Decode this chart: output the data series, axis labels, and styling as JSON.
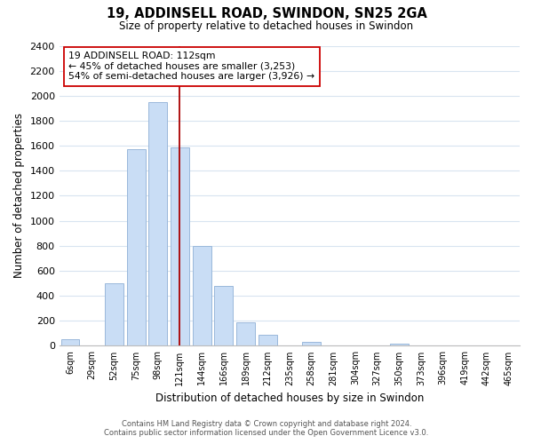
{
  "title": "19, ADDINSELL ROAD, SWINDON, SN25 2GA",
  "subtitle": "Size of property relative to detached houses in Swindon",
  "xlabel": "Distribution of detached houses by size in Swindon",
  "ylabel": "Number of detached properties",
  "bar_labels": [
    "6sqm",
    "29sqm",
    "52sqm",
    "75sqm",
    "98sqm",
    "121sqm",
    "144sqm",
    "166sqm",
    "189sqm",
    "212sqm",
    "235sqm",
    "258sqm",
    "281sqm",
    "304sqm",
    "327sqm",
    "350sqm",
    "373sqm",
    "396sqm",
    "419sqm",
    "442sqm",
    "465sqm"
  ],
  "bar_heights": [
    50,
    0,
    500,
    1575,
    1950,
    1590,
    800,
    480,
    185,
    90,
    0,
    30,
    0,
    0,
    0,
    15,
    0,
    0,
    0,
    0,
    0
  ],
  "bar_color": "#c9ddf5",
  "bar_edge_color": "#9ab8db",
  "vline_color": "#aa0000",
  "vline_x": 5,
  "ylim": [
    0,
    2400
  ],
  "yticks": [
    0,
    200,
    400,
    600,
    800,
    1000,
    1200,
    1400,
    1600,
    1800,
    2000,
    2200,
    2400
  ],
  "annotation_title": "19 ADDINSELL ROAD: 112sqm",
  "annotation_line1": "← 45% of detached houses are smaller (3,253)",
  "annotation_line2": "54% of semi-detached houses are larger (3,926) →",
  "footer1": "Contains HM Land Registry data © Crown copyright and database right 2024.",
  "footer2": "Contains public sector information licensed under the Open Government Licence v3.0.",
  "grid_color": "#d8e4f0",
  "background_color": "#ffffff",
  "figsize": [
    6.0,
    5.0
  ],
  "dpi": 100
}
